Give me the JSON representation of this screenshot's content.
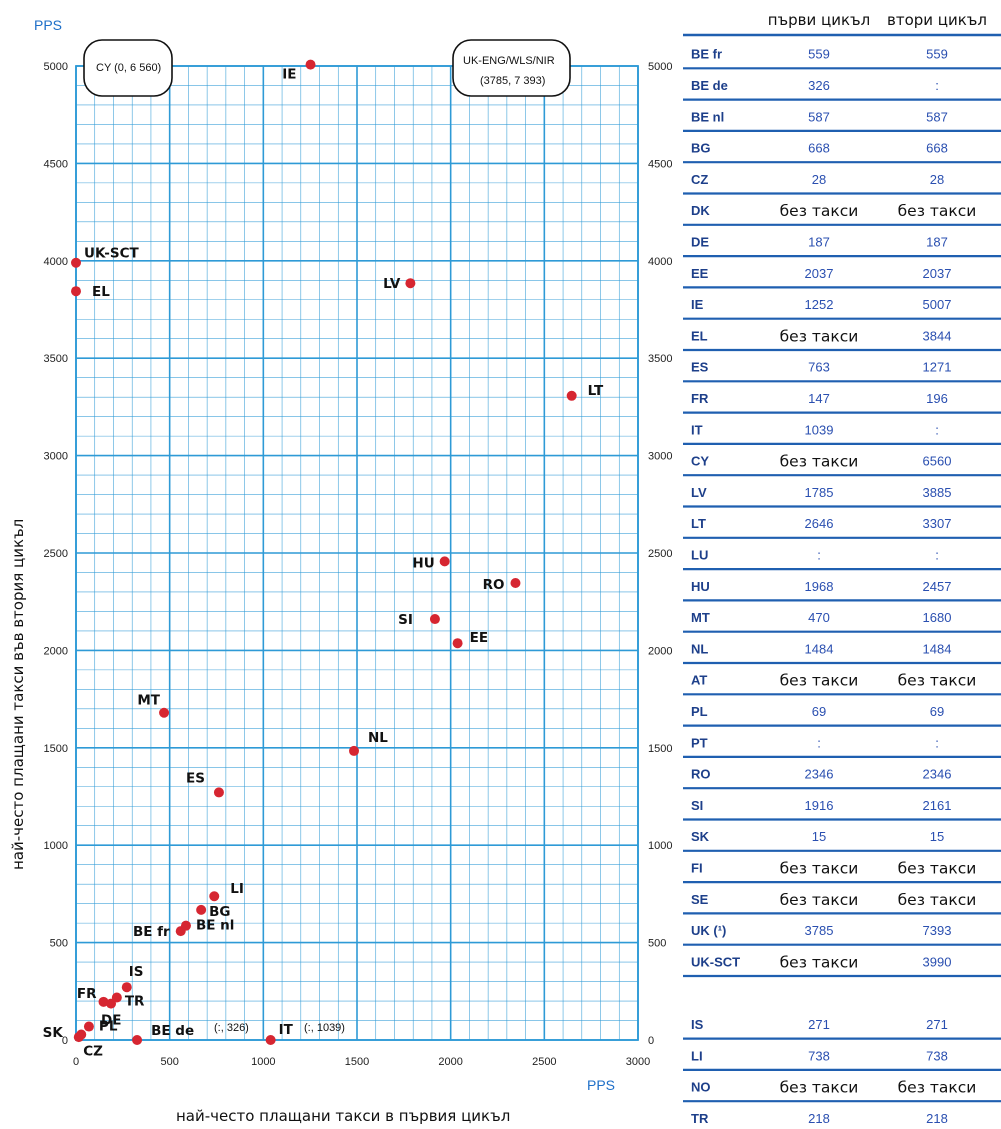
{
  "chart_data": {
    "type": "scatter",
    "xlabel": "най-често плащани такси в първия цикъл",
    "ylabel": "най-често плащани такси във втория цикъл",
    "x_unit": "PPS",
    "y_unit": "PPS",
    "xlim": [
      0,
      3000
    ],
    "ylim": [
      0,
      5000
    ],
    "x_ticks": [
      0,
      500,
      1000,
      1500,
      2000,
      2500,
      3000
    ],
    "y_ticks": [
      0,
      500,
      1000,
      1500,
      2000,
      2500,
      3000,
      3500,
      4000,
      4500,
      5000
    ],
    "grid": true,
    "points": [
      {
        "label": "IE",
        "x": 1252,
        "y": 5007
      },
      {
        "label": "UK-SCT",
        "x": 0,
        "y": 3990
      },
      {
        "label": "EL",
        "x": 0,
        "y": 3844
      },
      {
        "label": "LV",
        "x": 1785,
        "y": 3885
      },
      {
        "label": "LT",
        "x": 2646,
        "y": 3307
      },
      {
        "label": "HU",
        "x": 1968,
        "y": 2457
      },
      {
        "label": "RO",
        "x": 2346,
        "y": 2346
      },
      {
        "label": "SI",
        "x": 1916,
        "y": 2161
      },
      {
        "label": "EE",
        "x": 2037,
        "y": 2037
      },
      {
        "label": "MT",
        "x": 470,
        "y": 1680
      },
      {
        "label": "NL",
        "x": 1484,
        "y": 1484
      },
      {
        "label": "ES",
        "x": 763,
        "y": 1271
      },
      {
        "label": "LI",
        "x": 738,
        "y": 738
      },
      {
        "label": "BG",
        "x": 668,
        "y": 668
      },
      {
        "label": "BE fr",
        "x": 559,
        "y": 559
      },
      {
        "label": "BE nl",
        "x": 587,
        "y": 587
      },
      {
        "label": "IS",
        "x": 271,
        "y": 271
      },
      {
        "label": "FR",
        "x": 147,
        "y": 196
      },
      {
        "label": "DE",
        "x": 187,
        "y": 187
      },
      {
        "label": "TR",
        "x": 218,
        "y": 218
      },
      {
        "label": "PL",
        "x": 69,
        "y": 69
      },
      {
        "label": "SK",
        "x": 15,
        "y": 15
      },
      {
        "label": "CZ",
        "x": 28,
        "y": 28
      },
      {
        "label": "BE de",
        "x": 326,
        "y": 0
      },
      {
        "label": "IT",
        "x": 1039,
        "y": 0
      }
    ],
    "annotations": [
      {
        "text": "CY   (0, 6 560)"
      },
      {
        "text": "UK-ENG/WLS/NIR"
      },
      {
        "text": "(3785, 7 393)"
      },
      {
        "text": "(:, 326)"
      },
      {
        "text": "(:, 1039)"
      }
    ]
  },
  "table": {
    "col1": "първи цикъл",
    "col2": "втори цикъл",
    "rows": [
      {
        "code": "BE fr",
        "c1": "559",
        "c2": "559"
      },
      {
        "code": "BE de",
        "c1": "326",
        "c2": ":"
      },
      {
        "code": "BE nl",
        "c1": "587",
        "c2": "587"
      },
      {
        "code": "BG",
        "c1": "668",
        "c2": "668"
      },
      {
        "code": "CZ",
        "c1": "28",
        "c2": "28"
      },
      {
        "code": "DK",
        "c1": "без такси",
        "c2": "без такси"
      },
      {
        "code": "DE",
        "c1": "187",
        "c2": "187"
      },
      {
        "code": "EE",
        "c1": "2037",
        "c2": "2037"
      },
      {
        "code": "IE",
        "c1": "1252",
        "c2": "5007"
      },
      {
        "code": "EL",
        "c1": "без такси",
        "c2": "3844"
      },
      {
        "code": "ES",
        "c1": "763",
        "c2": "1271"
      },
      {
        "code": "FR",
        "c1": "147",
        "c2": "196"
      },
      {
        "code": "IT",
        "c1": "1039",
        "c2": ":"
      },
      {
        "code": "CY",
        "c1": "без такси",
        "c2": "6560"
      },
      {
        "code": "LV",
        "c1": "1785",
        "c2": "3885"
      },
      {
        "code": "LT",
        "c1": "2646",
        "c2": "3307"
      },
      {
        "code": "LU",
        "c1": ":",
        "c2": ":"
      },
      {
        "code": "HU",
        "c1": "1968",
        "c2": "2457"
      },
      {
        "code": "MT",
        "c1": "470",
        "c2": "1680"
      },
      {
        "code": "NL",
        "c1": "1484",
        "c2": "1484"
      },
      {
        "code": "AT",
        "c1": "без такси",
        "c2": "без такси"
      },
      {
        "code": "PL",
        "c1": "69",
        "c2": "69"
      },
      {
        "code": "PT",
        "c1": ":",
        "c2": ":"
      },
      {
        "code": "RO",
        "c1": "2346",
        "c2": "2346"
      },
      {
        "code": "SI",
        "c1": "1916",
        "c2": "2161"
      },
      {
        "code": "SK",
        "c1": "15",
        "c2": "15"
      },
      {
        "code": "FI",
        "c1": "без такси",
        "c2": "без такси"
      },
      {
        "code": "SE",
        "c1": "без такси",
        "c2": "без такси"
      },
      {
        "code": "UK (¹)",
        "c1": "3785",
        "c2": "7393"
      },
      {
        "code": "UK-SCT",
        "c1": "без такси",
        "c2": "3990"
      },
      {
        "code": "",
        "c1": "",
        "c2": ""
      },
      {
        "code": "IS",
        "c1": "271",
        "c2": "271"
      },
      {
        "code": "LI",
        "c1": "738",
        "c2": "738"
      },
      {
        "code": "NO",
        "c1": "без такси",
        "c2": "без такси"
      },
      {
        "code": "TR",
        "c1": "218",
        "c2": "218"
      }
    ]
  },
  "colors": {
    "grid": "#2e9ad6",
    "point": "#d62631",
    "table_rule": "#1f5fb0",
    "code_text": "#1d3f8a",
    "value_text": "#2a4fb0"
  }
}
